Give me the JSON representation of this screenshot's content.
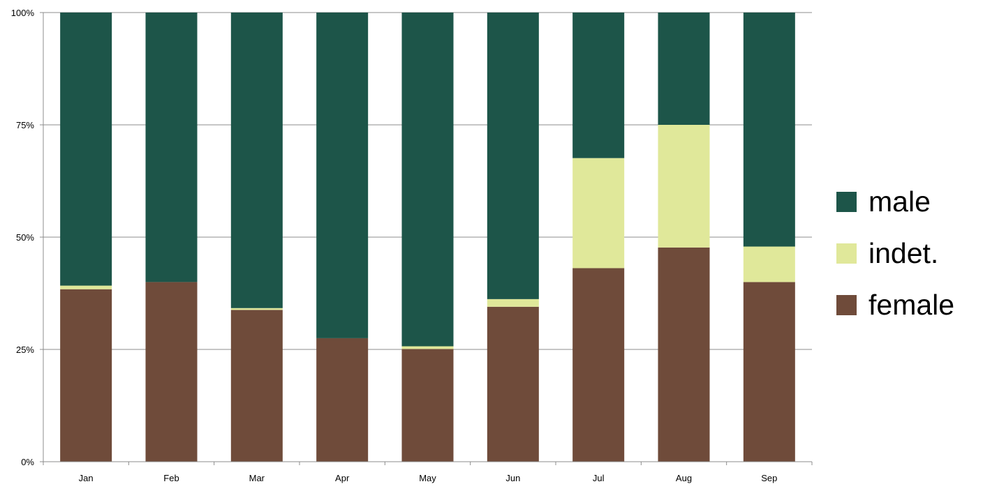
{
  "chart_data": {
    "type": "bar",
    "stacked": true,
    "normalized": true,
    "categories": [
      "Jan",
      "Feb",
      "Mar",
      "Apr",
      "May",
      "Jun",
      "Jul",
      "Aug",
      "Sep"
    ],
    "series": [
      {
        "name": "female",
        "color": "#6f4b3a",
        "values": [
          38.4,
          40.0,
          33.8,
          27.5,
          25.1,
          34.5,
          43.1,
          47.7,
          40.0
        ]
      },
      {
        "name": "indet.",
        "color": "#e0e89a",
        "values": [
          0.8,
          0.0,
          0.4,
          0.0,
          0.6,
          1.7,
          24.5,
          27.3,
          7.9
        ]
      },
      {
        "name": "male",
        "color": "#1d5549",
        "values": [
          60.8,
          60.0,
          65.8,
          72.5,
          74.3,
          63.8,
          32.4,
          25.0,
          52.1
        ]
      }
    ],
    "y_ticks": [
      "0%",
      "25%",
      "50%",
      "75%",
      "100%"
    ],
    "ylim": [
      0,
      100
    ],
    "grid": true,
    "legend_position": "right",
    "legend_order": [
      "male",
      "indet.",
      "female"
    ]
  }
}
